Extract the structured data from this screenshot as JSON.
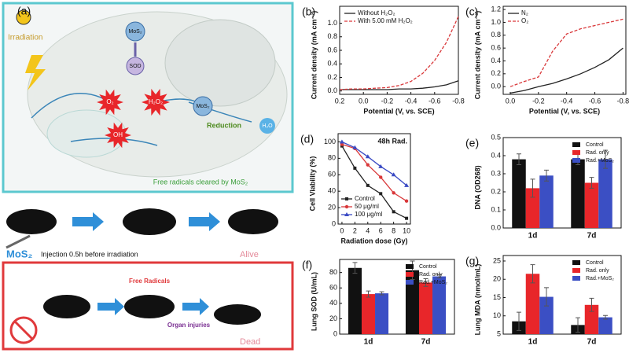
{
  "panel_a": {
    "label": "(a)",
    "irradiation": "Irradiation",
    "mos2_top": "MoS₂",
    "sod": "SOD",
    "o2": "O₂",
    "h2o2": "H₂O₂",
    "oh": "OH",
    "mos2_mid": "MoS₂",
    "reduction": "Reduction",
    "h2o": "H₂O",
    "cleared": "Free radicals cleared by MoS₂",
    "agent": "MoS₂",
    "injection": "Injection 0.5h before irradiation",
    "alive": "Alive",
    "free_radicals": "Free Radicals",
    "organ": "Organ injuries",
    "dead": "Dead"
  },
  "chart_data": [
    {
      "type": "line",
      "label": "(b)",
      "y_label": "Current density (mA cm⁻²)",
      "x_label": "Potential (V, vs. SCE)",
      "x": [
        0.2,
        0.1,
        0,
        -0.1,
        -0.2,
        -0.3,
        -0.4,
        -0.5,
        -0.6,
        -0.7,
        -0.8
      ],
      "xlim": [
        0.2,
        -0.8
      ],
      "xticks": [
        0.2,
        {
          "value": 0,
          "label": "0.0"
        },
        -0.2,
        -0.4,
        -0.6,
        -0.8
      ],
      "ylim": [
        -0.05,
        1.25
      ],
      "yticks": [
        {
          "value": 0,
          "label": "0.0"
        },
        0.2,
        0.4,
        0.6,
        0.8,
        {
          "value": 1,
          "label": "1.0"
        }
      ],
      "legend": "upper left",
      "series": [
        {
          "name": "Without H₂O₂",
          "color": "#222222",
          "dashed": false,
          "values": [
            0.02,
            0.02,
            0.02,
            0.02,
            0.02,
            0.03,
            0.03,
            0.04,
            0.06,
            0.09,
            0.15
          ]
        },
        {
          "name": "With 5.00 mM H₂O₂",
          "color": "#d9383a",
          "dashed": true,
          "values": [
            0.02,
            0.03,
            0.03,
            0.04,
            0.05,
            0.08,
            0.14,
            0.26,
            0.45,
            0.72,
            1.1
          ]
        }
      ]
    },
    {
      "type": "line",
      "label": "(c)",
      "y_label": "Current density (mA cm⁻²)",
      "x_label": "Potential (V, vs. SCE)",
      "x": [
        0,
        -0.1,
        -0.2,
        -0.3,
        -0.4,
        -0.5,
        -0.6,
        -0.7,
        -0.8
      ],
      "xlim": [
        0.05,
        -0.82
      ],
      "xticks": [
        {
          "value": 0,
          "label": "0.0"
        },
        -0.2,
        -0.4,
        -0.6,
        -0.8
      ],
      "ylim": [
        -0.12,
        1.25
      ],
      "yticks": [
        {
          "value": 0,
          "label": "0.0"
        },
        0.2,
        0.4,
        0.6,
        0.8,
        {
          "value": 1,
          "label": "1.0"
        },
        1.2
      ],
      "legend": "upper left",
      "series": [
        {
          "name": "N₂",
          "color": "#222222",
          "dashed": false,
          "values": [
            -0.1,
            -0.06,
            0.0,
            0.05,
            0.12,
            0.2,
            0.3,
            0.42,
            0.6
          ]
        },
        {
          "name": "O₂",
          "color": "#d9383a",
          "dashed": true,
          "values": [
            0.0,
            0.08,
            0.15,
            0.55,
            0.82,
            0.9,
            0.95,
            1.0,
            1.05
          ]
        }
      ]
    },
    {
      "type": "line",
      "label": "(d)",
      "y_label": "Cell Viability (%)",
      "x_label": "Radiation dose (Gy)",
      "annotation": "48h Rad.",
      "x": [
        0,
        2,
        4,
        6,
        8,
        10
      ],
      "xlim": [
        -0.6,
        10.6
      ],
      "xticks": [
        0,
        2,
        4,
        6,
        8,
        10
      ],
      "ylim": [
        0,
        110
      ],
      "yticks": [
        0,
        20,
        40,
        60,
        80,
        100
      ],
      "legend": "lower left",
      "series": [
        {
          "name": "Control",
          "color": "#222222",
          "dashed": false,
          "marker": "square",
          "values": [
            95,
            68,
            47,
            37,
            15,
            7
          ]
        },
        {
          "name": "50 μg/ml",
          "color": "#d9383a",
          "dashed": false,
          "marker": "circle",
          "values": [
            97,
            92,
            72,
            57,
            38,
            28
          ]
        },
        {
          "name": "100 μg/ml",
          "color": "#3a4ac4",
          "dashed": false,
          "marker": "triangle",
          "values": [
            100,
            93,
            82,
            70,
            60,
            47
          ]
        }
      ]
    },
    {
      "type": "bar",
      "label": "(e)",
      "y_label": "DNA (OD268)",
      "categories": [
        "1d",
        "7d"
      ],
      "ylim": [
        0,
        0.5
      ],
      "yticks": [
        {
          "value": 0,
          "label": "0.0"
        },
        0.1,
        0.2,
        0.3,
        0.4,
        0.5
      ],
      "legend": "upper right",
      "series": [
        {
          "name": "Control",
          "color": "#111111",
          "values": [
            0.38,
            0.38
          ],
          "errors": [
            0.03,
            0.03
          ]
        },
        {
          "name": "Rad. only",
          "color": "#e8262a",
          "values": [
            0.22,
            0.25
          ],
          "errors": [
            0.05,
            0.03
          ]
        },
        {
          "name": "Rad.+MoS₂",
          "color": "#3b4fc4",
          "values": [
            0.29,
            0.38
          ],
          "errors": [
            0.03,
            0.05
          ]
        }
      ]
    },
    {
      "type": "bar",
      "label": "(f)",
      "y_label": "Lung SOD (U/mL)",
      "categories": [
        "1d",
        "7d"
      ],
      "ylim": [
        0,
        97
      ],
      "yticks": [
        0,
        20,
        40,
        60,
        80
      ],
      "legend": "upper right",
      "series": [
        {
          "name": "Control",
          "color": "#111111",
          "values": [
            86,
            83
          ],
          "errors": [
            7,
            12
          ]
        },
        {
          "name": "Rad. only",
          "color": "#e8262a",
          "values": [
            52,
            67
          ],
          "errors": [
            4,
            5
          ]
        },
        {
          "name": "Rad.+MoS₂",
          "color": "#3b4fc4",
          "values": [
            53,
            75
          ],
          "errors": [
            2,
            2
          ]
        }
      ]
    },
    {
      "type": "bar",
      "label": "(g)",
      "y_label": "Lung MDA (nmol/mL)",
      "categories": [
        "1d",
        "7d"
      ],
      "ylim": [
        5,
        26.5
      ],
      "yticks": [
        5,
        10,
        15,
        20,
        25
      ],
      "legend": "upper right",
      "series": [
        {
          "name": "Control",
          "color": "#111111",
          "values": [
            8.5,
            7.5
          ],
          "errors": [
            2.5,
            2
          ]
        },
        {
          "name": "Rad. only",
          "color": "#e8262a",
          "values": [
            21.5,
            13
          ],
          "errors": [
            2.5,
            1.8
          ]
        },
        {
          "name": "Rad.+MoS₂",
          "color": "#3b4fc4",
          "values": [
            15.2,
            9.6
          ],
          "errors": [
            2.5,
            0.5
          ]
        }
      ]
    }
  ]
}
